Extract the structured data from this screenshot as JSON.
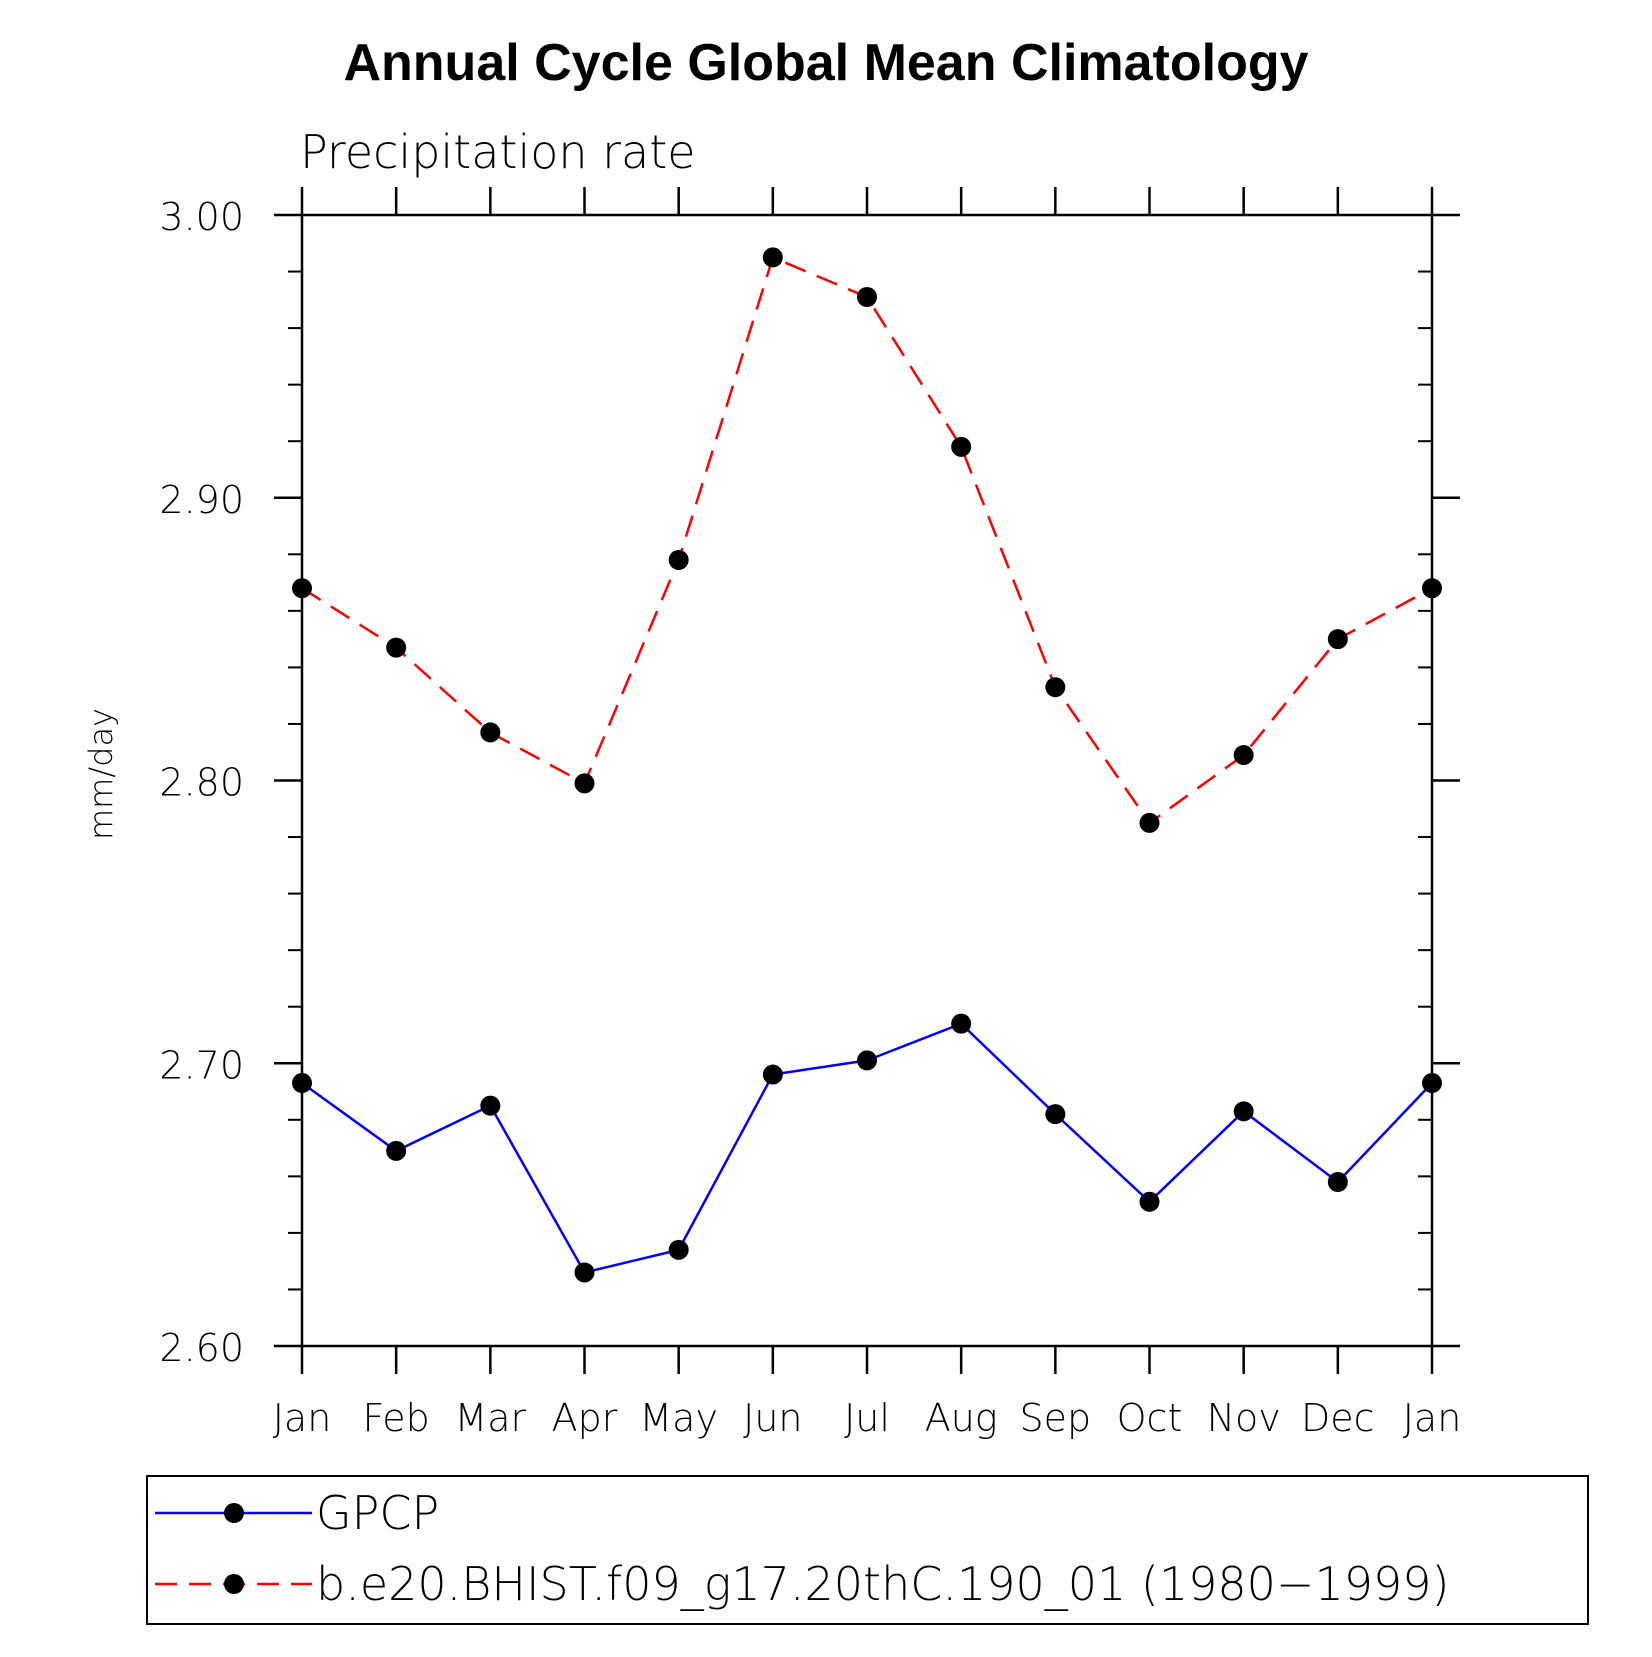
{
  "chart_data": {
    "type": "line",
    "title": "Annual Cycle Global Mean Climatology",
    "subtitle": "Precipitation rate",
    "xlabel": "",
    "ylabel": "mm/day",
    "categories": [
      "Jan",
      "Feb",
      "Mar",
      "Apr",
      "May",
      "Jun",
      "Jul",
      "Aug",
      "Sep",
      "Oct",
      "Nov",
      "Dec",
      "Jan"
    ],
    "ylim": [
      2.6,
      3.0
    ],
    "yticks": [
      "2.60",
      "2.70",
      "2.80",
      "2.90",
      "3.00"
    ],
    "grid": false,
    "legend_position": "bottom",
    "series": [
      {
        "name": "GPCP",
        "color": "#0000ff",
        "line_style": "solid",
        "marker": "filled-circle",
        "values": [
          2.693,
          2.669,
          2.685,
          2.626,
          2.634,
          2.696,
          2.701,
          2.714,
          2.682,
          2.651,
          2.683,
          2.658,
          2.693
        ]
      },
      {
        "name": "b.e20.BHIST.f09_g17.20thC.190_01 (1980−1999)",
        "color": "#ff0000",
        "line_style": "dashed",
        "marker": "filled-circle",
        "values": [
          2.868,
          2.847,
          2.817,
          2.799,
          2.878,
          2.985,
          2.971,
          2.918,
          2.833,
          2.785,
          2.809,
          2.85,
          2.868
        ]
      }
    ]
  }
}
